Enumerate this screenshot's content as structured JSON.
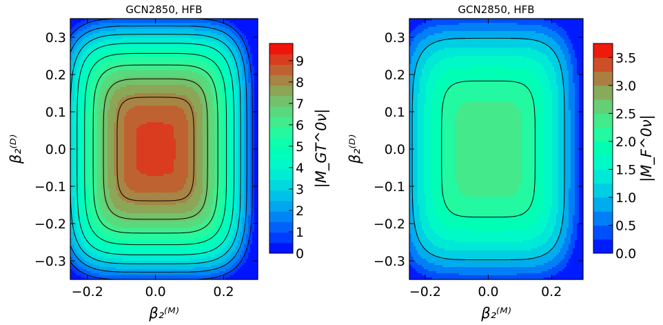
{
  "chart_data": [
    {
      "type": "heatmap",
      "title": "GCN2850, HFB",
      "xlabel": "β₂⁽ᴹ⁾",
      "ylabel": "β₂⁽ᴰ⁾",
      "xlim": [
        -0.25,
        0.3
      ],
      "ylim": [
        -0.35,
        0.35
      ],
      "x_ticks": [
        -0.2,
        0.0,
        0.2
      ],
      "x_tick_labels": [
        "−0.2",
        "0.0",
        "0.2"
      ],
      "y_ticks": [
        0.3,
        0.2,
        0.1,
        0.0,
        -0.1,
        -0.2,
        -0.3
      ],
      "y_tick_labels": [
        "0.3",
        "0.2",
        "0.1",
        "0.0",
        "−0.1",
        "−0.2",
        "−0.3"
      ],
      "colormap": "rainbow",
      "colorbar": {
        "label": "|M_GT^0ν|",
        "range": [
          0,
          9.8
        ],
        "ticks": [
          0,
          1,
          2,
          3,
          4,
          5,
          6,
          7,
          8,
          9
        ],
        "tick_labels": [
          "0",
          "1",
          "2",
          "3",
          "4",
          "5",
          "6",
          "7",
          "8",
          "9"
        ]
      },
      "fill_levels": 20,
      "contour_lines": [
        1,
        2,
        3,
        4,
        5,
        6,
        7,
        8
      ],
      "peak_value": 9.0,
      "peak_location": [
        0.0,
        0.0
      ]
    },
    {
      "type": "heatmap",
      "title": "GCN2850, HFB",
      "xlabel": "β₂⁽ᴹ⁾",
      "ylabel": "β₂⁽ᴰ⁾",
      "xlim": [
        -0.25,
        0.3
      ],
      "ylim": [
        -0.35,
        0.35
      ],
      "x_ticks": [
        -0.2,
        0.0,
        0.2
      ],
      "x_tick_labels": [
        "−0.2",
        "0.0",
        "0.2"
      ],
      "y_ticks": [
        0.3,
        0.2,
        0.1,
        0.0,
        -0.1,
        -0.2,
        -0.3
      ],
      "y_tick_labels": [
        "0.3",
        "0.2",
        "0.1",
        "0.0",
        "−0.1",
        "−0.2",
        "−0.3"
      ],
      "colormap": "rainbow",
      "colorbar": {
        "label": "|M_F^0ν|",
        "range": [
          0,
          3.75
        ],
        "ticks": [
          0.0,
          0.5,
          1.0,
          1.5,
          2.0,
          2.5,
          3.0,
          3.5
        ],
        "tick_labels": [
          "0.0",
          "0.5",
          "1.0",
          "1.5",
          "2.0",
          "2.5",
          "3.0",
          "3.5"
        ]
      },
      "fill_levels": 15,
      "contour_lines": [
        1.0,
        2.0
      ],
      "peak_value": 2.45,
      "peak_location": [
        0.0,
        0.0
      ]
    }
  ]
}
